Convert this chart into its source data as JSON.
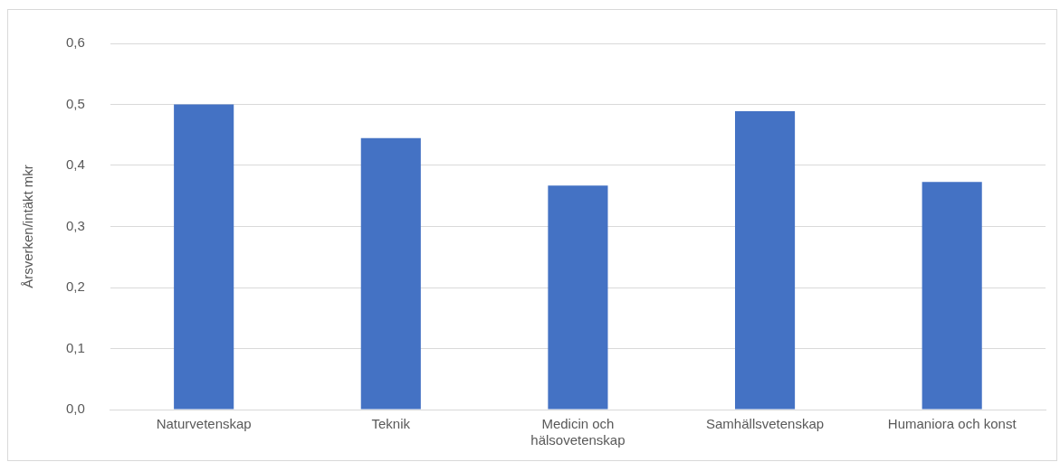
{
  "chart_data": {
    "type": "bar",
    "ylabel": "Årsverken/intäkt mkr",
    "categories": [
      "Naturvetenskap",
      "Teknik",
      "Medicin och hälsovetenskap",
      "Samhällsvetenskap",
      "Humaniora och konst"
    ],
    "values": [
      0.5,
      0.445,
      0.367,
      0.489,
      0.373
    ],
    "color": "#4472c4",
    "ylim": [
      0,
      0.6
    ],
    "yticks": [
      {
        "value": 0,
        "label": "0,0"
      },
      {
        "value": 0.1,
        "label": "0,1"
      },
      {
        "value": 0.2,
        "label": "0,2"
      },
      {
        "value": 0.3,
        "label": "0,3"
      },
      {
        "value": 0.4,
        "label": "0,4"
      },
      {
        "value": 0.5,
        "label": "0,5"
      },
      {
        "value": 0.6,
        "label": "0,6"
      }
    ],
    "grid": "y",
    "legend": false
  }
}
